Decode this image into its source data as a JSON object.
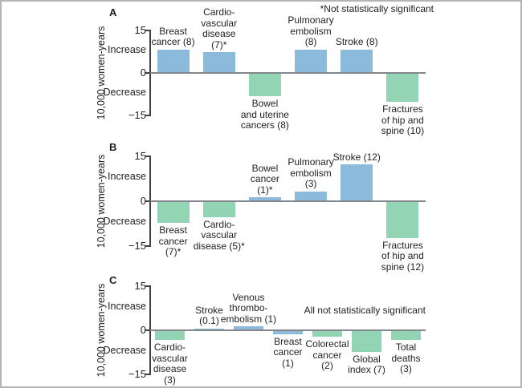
{
  "axis": {
    "ylabel": "10,000 women-years",
    "increase": "Increase",
    "decrease": "Decrease",
    "yticks": [
      {
        "label": "15",
        "value": 15
      },
      {
        "label": "0",
        "value": 0
      },
      {
        "label": "−15",
        "value": -15
      }
    ]
  },
  "colors": {
    "increase_bar": "#8CBADB",
    "decrease_bar": "#92D4B4",
    "zero_line": "#83878B",
    "axis_line": "#404040",
    "text": "#222222",
    "frame": "#B4B4B4"
  },
  "chart_data": [
    {
      "panel": "A",
      "type": "bar",
      "ylabel": "10,000 women-years",
      "ylim": [
        -15,
        15
      ],
      "annotation": "*Not statistically significant",
      "bars": [
        {
          "label": "Breast cancer (8)",
          "value": 8,
          "color": "blue",
          "label_lines": [
            "Breast",
            "cancer (8)"
          ]
        },
        {
          "label": "Cardiovascular disease (7)*",
          "value": 7,
          "color": "blue",
          "label_lines": [
            "Cardio-",
            "vascular",
            "disease",
            "(7)*"
          ]
        },
        {
          "label": "Bowel and uterine cancers (8)",
          "value": -8,
          "color": "green",
          "label_lines": [
            "Bowel",
            "and uterine",
            "cancers (8)"
          ]
        },
        {
          "label": "Pulmonary embolism (8)",
          "value": 8,
          "color": "blue",
          "label_lines": [
            "Pulmonary",
            "embolism",
            "(8)"
          ]
        },
        {
          "label": "Stroke (8)",
          "value": 8,
          "color": "blue",
          "label_lines": [
            "Stroke (8)"
          ]
        },
        {
          "label": "Fractures of hip and spine (10)",
          "value": -10,
          "color": "green",
          "label_lines": [
            "Fractures",
            "of hip and",
            "spine (10)"
          ]
        }
      ]
    },
    {
      "panel": "B",
      "type": "bar",
      "ylabel": "10,000 women-years",
      "ylim": [
        -15,
        15
      ],
      "annotation": null,
      "bars": [
        {
          "label": "Breast cancer (7)*",
          "value": -7,
          "color": "green",
          "label_lines": [
            "Breast",
            "cancer",
            "(7)*"
          ]
        },
        {
          "label": "Cardiovascular disease (5)*",
          "value": -5,
          "color": "green",
          "label_lines": [
            "Cardio-",
            "vascular",
            "disease (5)*"
          ]
        },
        {
          "label": "Bowel cancer (1)*",
          "value": 1,
          "color": "blue",
          "label_lines": [
            "Bowel",
            "cancer",
            "(1)*"
          ]
        },
        {
          "label": "Pulmonary embolism (3)",
          "value": 3,
          "color": "blue",
          "label_lines": [
            "Pulmonary",
            "embolism",
            "(3)"
          ]
        },
        {
          "label": "Stroke (12)",
          "value": 12,
          "color": "blue",
          "label_lines": [
            "Stroke (12)"
          ]
        },
        {
          "label": "Fractures of hip and spine (12)",
          "value": -12,
          "color": "green",
          "label_lines": [
            "Fractures",
            "of hip and",
            "spine (12)"
          ]
        }
      ]
    },
    {
      "panel": "C",
      "type": "bar",
      "ylabel": "10,000 women-years",
      "ylim": [
        -15,
        15
      ],
      "annotation": "All not statistically significant",
      "bars": [
        {
          "label": "Cardiovascular disease (3)",
          "value": -3,
          "color": "green",
          "label_lines": [
            "Cardio-",
            "vascular",
            "disease",
            "(3)"
          ]
        },
        {
          "label": "Stroke (0.1)",
          "value": 0.1,
          "color": "blue",
          "label_lines": [
            "Stroke",
            "(0.1)"
          ]
        },
        {
          "label": "Venous thrombo-embolism (1)",
          "value": 1,
          "color": "blue",
          "label_lines": [
            "Venous",
            "thrombo-",
            "embolism (1)"
          ]
        },
        {
          "label": "Breast cancer (1)",
          "value": -1,
          "color": "blue",
          "label_lines": [
            "Breast",
            "cancer",
            "(1)"
          ]
        },
        {
          "label": "Colorectal cancer (2)",
          "value": -2,
          "color": "green",
          "label_lines": [
            "Colorectal",
            "cancer",
            "(2)"
          ]
        },
        {
          "label": "Global index (7)",
          "value": -7,
          "color": "green",
          "label_lines": [
            "Global",
            "index (7)"
          ]
        },
        {
          "label": "Total deaths (3)",
          "value": -3,
          "color": "green",
          "label_lines": [
            "Total",
            "deaths",
            "(3)"
          ]
        }
      ]
    }
  ]
}
